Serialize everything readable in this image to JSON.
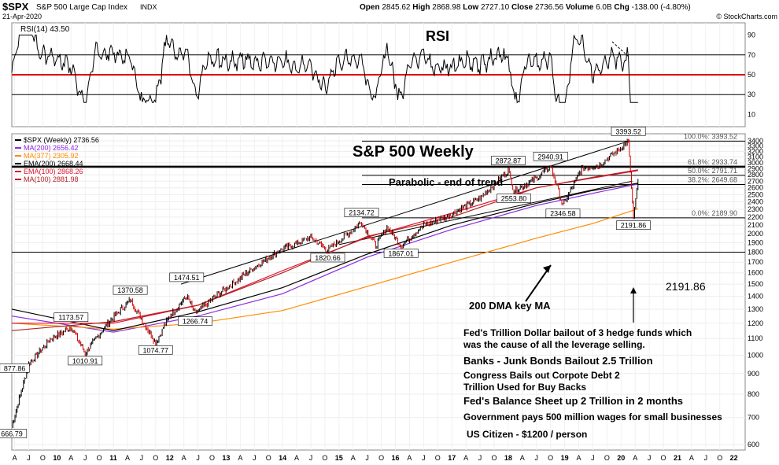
{
  "header": {
    "symbol": "$SPX",
    "name": "S&P 500 Large Cap Index",
    "exchange": "INDX",
    "date": "21-Apr-2020",
    "open_label": "Open",
    "open": "2845.62",
    "high_label": "High",
    "high": "2868.98",
    "low_label": "Low",
    "low": "2727.10",
    "close_label": "Close",
    "close": "2736.56",
    "volume_label": "Volume",
    "volume": "6.0B",
    "chg_label": "Chg",
    "chg": "-138.00 (-4.80%)",
    "watermark": "© StockCharts.com"
  },
  "rsi_panel": {
    "legend": "RSI(14) 43.50",
    "title": "RSI",
    "ylim": [
      0,
      100
    ],
    "ticks": [
      10,
      30,
      50,
      70,
      90
    ],
    "reference_lines": [
      30,
      50,
      70
    ],
    "colors": {
      "line": "#000000",
      "midline": "#e00000",
      "fill": "#707070"
    }
  },
  "price_panel": {
    "title": "S&P 500 Weekly",
    "legend": [
      {
        "label": "$SPX (Weekly) 2736.56",
        "color": "#000000"
      },
      {
        "label": "MA(200) 2656.42",
        "color": "#8a2be2"
      },
      {
        "label": "MA(377) 2305.92",
        "color": "#ff8c00"
      },
      {
        "label": "EMA(200) 2668.44",
        "color": "#000000"
      },
      {
        "label": "EMA(100) 2868.26",
        "color": "#e0102f"
      },
      {
        "label": "MA(100) 2881.98",
        "color": "#b22222"
      }
    ],
    "y_ticks": [
      600,
      700,
      800,
      900,
      1000,
      1100,
      1200,
      1300,
      1400,
      1500,
      1600,
      1700,
      1800,
      1900,
      2000,
      2100,
      2200,
      2300,
      2400,
      2500,
      2600,
      2700,
      2800,
      2900,
      3000,
      3100,
      3200,
      3300,
      3400
    ],
    "fib_levels": [
      {
        "label": "100.0%: 3393.52",
        "value": 3393.52
      },
      {
        "label": "61.8%: 2933.74",
        "value": 2933.74
      },
      {
        "label": "50.0%: 2791.71",
        "value": 2791.71
      },
      {
        "label": "38.2%: 2649.68",
        "value": 2649.68
      },
      {
        "label": "0.0%: 2189.90",
        "value": 2189.9
      }
    ],
    "horizontal_line": 1800,
    "point_labels": [
      {
        "text": "877.86",
        "value": 877.86
      },
      {
        "text": "666.79",
        "value": 666.79
      },
      {
        "text": "1173.57",
        "value": 1173.57
      },
      {
        "text": "1010.91",
        "value": 1010.91
      },
      {
        "text": "1370.58",
        "value": 1370.58
      },
      {
        "text": "1074.77",
        "value": 1074.77
      },
      {
        "text": "1266.74",
        "value": 1266.74
      },
      {
        "text": "1474.51",
        "value": 1474.51
      },
      {
        "text": "2134.72",
        "value": 2134.72
      },
      {
        "text": "1820.66",
        "value": 1820.66
      },
      {
        "text": "1867.01",
        "value": 1867.01
      },
      {
        "text": "2872.87",
        "value": 2872.87
      },
      {
        "text": "2553.80",
        "value": 2553.8
      },
      {
        "text": "2940.91",
        "value": 2940.91
      },
      {
        "text": "2346.58",
        "value": 2346.58
      },
      {
        "text": "3393.52",
        "value": 3393.52
      },
      {
        "text": "2191.86",
        "value": 2191.86
      }
    ],
    "annotations": {
      "parabolic": "Parabolic - end of trend",
      "dma": "200 DMA key MA",
      "low_value": "2191.86",
      "fed_bailout": "Fed's Trillion Dollar bailout of 3 hedge funds which\nwas the cause of all the leverage selling.",
      "banks": "Banks - Junk Bonds Bailout 2.5 Trillion",
      "congress": "Congress Bails out Corpote Debt 2\nTrillion Used for Buy Backs",
      "fed_balance": "Fed's Balance Sheet up 2 Trillion in 2 months",
      "government": "Government pays 500 million wages for small businesses",
      "citizen": "US Citizen - $1200 / person"
    }
  },
  "x_axis": {
    "labels": [
      "A",
      "J",
      "O",
      "10",
      "A",
      "J",
      "O",
      "11",
      "A",
      "J",
      "O",
      "12",
      "A",
      "J",
      "O",
      "13",
      "A",
      "J",
      "O",
      "14",
      "A",
      "J",
      "O",
      "15",
      "A",
      "J",
      "O",
      "16",
      "A",
      "J",
      "O",
      "17",
      "A",
      "J",
      "O",
      "18",
      "A",
      "J",
      "O",
      "19",
      "A",
      "J",
      "O",
      "20",
      "A",
      "J",
      "O",
      "21",
      "A",
      "J",
      "O",
      "22"
    ]
  },
  "chart_data": {
    "type": "line",
    "title": "S&P 500 Weekly",
    "x_range": [
      "2009-03",
      "2022-03"
    ],
    "ylim": [
      600,
      3400
    ],
    "y_scale": "log",
    "series": [
      {
        "name": "$SPX (Weekly)",
        "x": [
          2009.2,
          2009.5,
          2009.9,
          2010.25,
          2010.5,
          2010.9,
          2011.3,
          2011.75,
          2012.0,
          2012.3,
          2012.45,
          2012.9,
          2013.5,
          2013.95,
          2014.5,
          2014.8,
          2015.4,
          2015.65,
          2015.85,
          2016.1,
          2016.5,
          2016.9,
          2017.5,
          2018.0,
          2018.1,
          2018.5,
          2018.75,
          2018.97,
          2019.3,
          2019.6,
          2019.95,
          2020.13,
          2020.22,
          2020.3
        ],
        "values": [
          666.79,
          950,
          1100,
          1173.57,
          1010.91,
          1200,
          1370.58,
          1074.77,
          1250,
          1400,
          1266.74,
          1430,
          1650,
          1820,
          1960,
          1820.66,
          2134.72,
          1867.01,
          2080,
          1867.01,
          2100,
          2200,
          2450,
          2872.87,
          2553.8,
          2750,
          2940.91,
          2346.58,
          2900,
          2950,
          3230,
          3393.52,
          2191.86,
          2736.56
        ]
      },
      {
        "name": "MA(200)",
        "x": [
          2009.2,
          2011.0,
          2012.5,
          2014.0,
          2015.5,
          2017.0,
          2018.5,
          2019.5,
          2020.3
        ],
        "values": [
          1250,
          1140,
          1250,
          1420,
          1750,
          2050,
          2350,
          2520,
          2656.42
        ]
      },
      {
        "name": "MA(377)",
        "x": [
          2009.2,
          2011.0,
          2012.5,
          2014.0,
          2015.5,
          2017.0,
          2018.5,
          2019.5,
          2020.3
        ],
        "values": [
          1200,
          1160,
          1200,
          1290,
          1480,
          1700,
          1950,
          2120,
          2305.92
        ]
      },
      {
        "name": "EMA(200)",
        "x": [
          2009.2,
          2011.0,
          2012.5,
          2014.0,
          2015.5,
          2017.0,
          2018.5,
          2019.5,
          2020.3
        ],
        "values": [
          1300,
          1150,
          1280,
          1470,
          1780,
          2100,
          2380,
          2560,
          2668.44
        ]
      },
      {
        "name": "EMA(100)",
        "x": [
          2009.2,
          2011.0,
          2012.5,
          2014.0,
          2015.5,
          2017.0,
          2018.5,
          2019.5,
          2020.3
        ],
        "values": [
          1200,
          1200,
          1330,
          1620,
          1960,
          2250,
          2600,
          2750,
          2868.26
        ]
      },
      {
        "name": "MA(100)",
        "x": [
          2009.2,
          2011.0,
          2012.5,
          2014.0,
          2015.5,
          2017.0,
          2018.5,
          2019.5,
          2020.3
        ],
        "values": [
          1150,
          1210,
          1330,
          1600,
          1970,
          2200,
          2600,
          2760,
          2881.98
        ]
      }
    ],
    "rsi": {
      "name": "RSI(14)",
      "last": 43.5,
      "ylim": [
        0,
        100
      ]
    }
  }
}
